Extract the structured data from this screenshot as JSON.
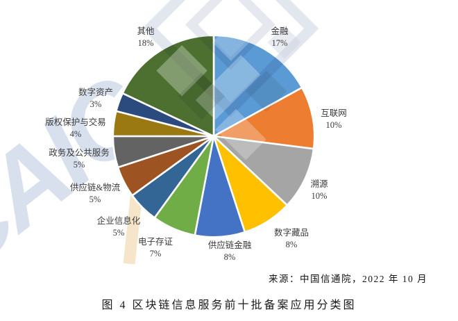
{
  "watermark": {
    "letters": "CAIC"
  },
  "chart_data": {
    "type": "pie",
    "title": "图 4 区块链信息服务前十批备案应用分类图",
    "source_note": "来源：中国信通院，2022 年 10 月",
    "start_angle_deg": 0,
    "direction": "clockwise",
    "legend_position": "outside-labels",
    "slices": [
      {
        "label": "金融",
        "value": 17,
        "pct_label": "17%",
        "color": "#5B9BD5"
      },
      {
        "label": "互联网",
        "value": 10,
        "pct_label": "10%",
        "color": "#ED7D31"
      },
      {
        "label": "溯源",
        "value": 10,
        "pct_label": "10%",
        "color": "#A5A5A5"
      },
      {
        "label": "数字藏品",
        "value": 8,
        "pct_label": "8%",
        "color": "#FFC000"
      },
      {
        "label": "供应链金融",
        "value": 8,
        "pct_label": "8%",
        "color": "#4472C4"
      },
      {
        "label": "电子存证",
        "value": 7,
        "pct_label": "7%",
        "color": "#70AD47"
      },
      {
        "label": "企业信息化",
        "value": 5,
        "pct_label": "5%",
        "color": "#336694"
      },
      {
        "label": "供应链&物流",
        "value": 5,
        "pct_label": "5%",
        "color": "#9E5322"
      },
      {
        "label": "政务及公共服务",
        "value": 5,
        "pct_label": "5%",
        "color": "#636363"
      },
      {
        "label": "版权保护与交易",
        "value": 4,
        "pct_label": "4%",
        "color": "#9A7912"
      },
      {
        "label": "数字资产",
        "value": 3,
        "pct_label": "3%",
        "color": "#2B4A7D"
      },
      {
        "label": "其他",
        "value": 18,
        "pct_label": "18%",
        "color": "#4D7031"
      }
    ]
  },
  "source": "来源：中国信通院，2022 年 10 月",
  "caption": "图 4 区块链信息服务前十批备案应用分类图"
}
